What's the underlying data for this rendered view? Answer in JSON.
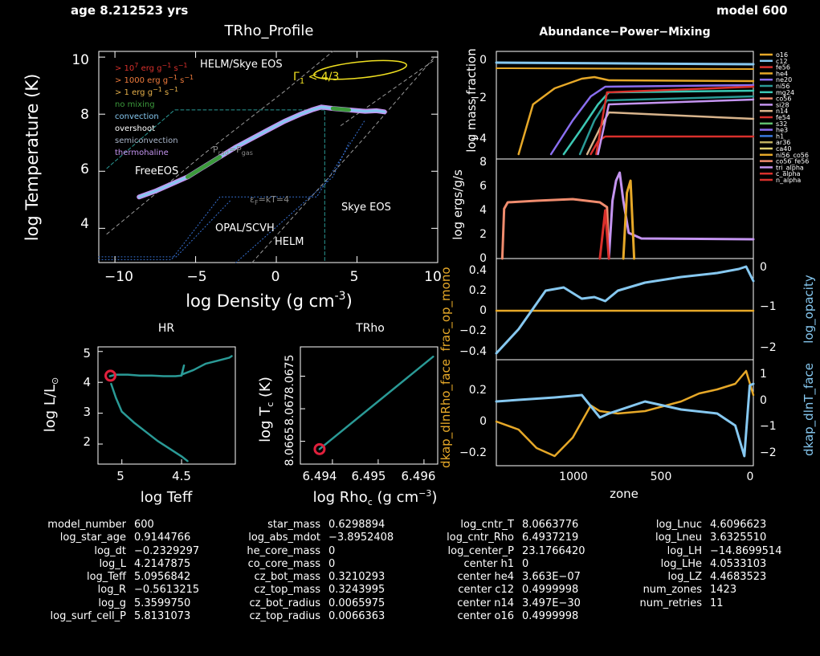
{
  "header": {
    "age_label": "age 8.212523 yrs",
    "model_label": "model 600"
  },
  "trho_profile": {
    "title": "TRho_Profile",
    "xlabel": "log Density (g cm",
    "xlabel_sup": "-3",
    "xlabel_end": ")",
    "ylabel": "log Temperature (K)",
    "xticks": [
      "−10",
      "−5",
      "0",
      "5",
      "10"
    ],
    "yticks": [
      "4",
      "6",
      "8",
      "10"
    ],
    "region_labels": {
      "helm_skye": "HELM/Skye EOS",
      "gamma1": "Γ",
      "gamma1_sub": "1",
      "gamma1_rest": " < 4/3",
      "freeeos": "FreeEOS",
      "prad": "P",
      "prad_sub": "rad",
      "prad_mid": "=P",
      "prad_sub2": "gas",
      "skye": "Skye EOS",
      "opal": "OPAL/SCVH",
      "helm": "HELM",
      "ef": "ε",
      "ef_sub": "F",
      "ef_rest": "=kT=4"
    },
    "legend": [
      {
        "label": "> 10",
        "sup": "7",
        "rest": " erg g",
        "sup2": "−1",
        "rest2": " s",
        "sup3": "−1",
        "color": "#d9302c"
      },
      {
        "label": "> 1000 erg g",
        "sup": "−1",
        "rest": " s",
        "sup2": "−1",
        "rest2": "",
        "sup3": "",
        "color": "#f07c3c"
      },
      {
        "label": "> 1 erg g",
        "sup": "−1",
        "rest": " s",
        "sup2": "−1",
        "rest2": "",
        "sup3": "",
        "color": "#e6b04a"
      },
      {
        "label": "no mixing",
        "sup": "",
        "rest": "",
        "sup2": "",
        "rest2": "",
        "sup3": "",
        "color": "#3c9a3c"
      },
      {
        "label": "convection",
        "sup": "",
        "rest": "",
        "sup2": "",
        "rest2": "",
        "sup3": "",
        "color": "#86c8f0"
      },
      {
        "label": "overshoot",
        "sup": "",
        "rest": "",
        "sup2": "",
        "rest2": "",
        "sup3": "",
        "color": "#ffffff"
      },
      {
        "label": "semiconvection",
        "sup": "",
        "rest": "",
        "sup2": "",
        "rest2": "",
        "sup3": "",
        "color": "#a8b4c8"
      },
      {
        "label": "thermohaline",
        "sup": "",
        "rest": "",
        "sup2": "",
        "rest2": "",
        "sup3": "",
        "color": "#c494f0"
      }
    ]
  },
  "hr": {
    "title": "HR",
    "xlabel": "log Teff",
    "ylabel": "log L/L",
    "xticks": [
      "5",
      "4.5"
    ],
    "yticks": [
      "2",
      "3",
      "4",
      "5"
    ]
  },
  "trho_center": {
    "title": "TRho",
    "xlabel": "log Rho",
    "xlabel_sub": "c",
    "xlabel_rest": " (g cm",
    "xlabel_sup": "−3",
    "xlabel_end": ")",
    "ylabel": "log T",
    "ylabel_sub": "c",
    "ylabel_rest": " (K)",
    "xticks": [
      "6.494",
      "6.495",
      "6.496"
    ],
    "yticks": [
      "8.0665",
      "8.067",
      "8.0675"
    ]
  },
  "abundance": {
    "title": "Abundance−Power−Mixing",
    "ylabel_abund": "log mass fraction",
    "ylabel_power": "log ergs/g/s",
    "ylabel_opmono": "frac_op_mono",
    "ylabel_opacity": "log_opacity",
    "ylabel_dlnrho": "dkap_dlnRho_face",
    "ylabel_dlnt": "dkap_dlnT_face",
    "xlabel": "zone",
    "xticks": [
      "1000",
      "500",
      "0"
    ],
    "abund_yticks": [
      "−4",
      "−2",
      "0"
    ],
    "power_yticks": [
      "0",
      "2",
      "4",
      "6",
      "8"
    ],
    "opmono_yticks": [
      "−0.4",
      "−0.2",
      "0",
      "0.2",
      "0.4"
    ],
    "opacity_yticks": [
      "−2",
      "−1",
      "0"
    ],
    "dlnrho_yticks": [
      "−0.2",
      "0",
      "0.2"
    ],
    "dlnt_yticks": [
      "−2",
      "−1",
      "0",
      "1"
    ],
    "legend": [
      {
        "label": "o16",
        "color": "#e6a828"
      },
      {
        "label": "c12",
        "color": "#86c8f0"
      },
      {
        "label": "fe56",
        "color": "#d9302c"
      },
      {
        "label": "he4",
        "color": "#e6a828"
      },
      {
        "label": "ne20",
        "color": "#8a6ef0"
      },
      {
        "label": "ni56",
        "color": "#2a9a96"
      },
      {
        "label": "mg24",
        "color": "#3cc8b4"
      },
      {
        "label": "co56",
        "color": "#f08c6e"
      },
      {
        "label": "si28",
        "color": "#c494f0"
      },
      {
        "label": "n14",
        "color": "#d8b48c"
      },
      {
        "label": "fe54",
        "color": "#d9302c"
      },
      {
        "label": "s32",
        "color": "#60c070"
      },
      {
        "label": "he3",
        "color": "#8a6ef0"
      },
      {
        "label": "h1",
        "color": "#3a78e0"
      },
      {
        "label": "ar36",
        "color": "#c0b060"
      },
      {
        "label": "ca40",
        "color": "#e0d070"
      },
      {
        "label": "ni56_co56",
        "color": "#e6a828"
      },
      {
        "label": "co56_fe56",
        "color": "#f08c6e"
      },
      {
        "label": "tri_alpha",
        "color": "#c494f0"
      },
      {
        "label": "c_alpha",
        "color": "#d9302c"
      },
      {
        "label": "n_alpha",
        "color": "#d9302c"
      }
    ]
  },
  "table": {
    "col1": [
      [
        "model_number",
        "600"
      ],
      [
        "log_star_age",
        "0.9144766"
      ],
      [
        "log_dt",
        "−0.2329297"
      ],
      [
        "log_L",
        "4.2147875"
      ],
      [
        "log_Teff",
        "5.0956842"
      ],
      [
        "log_R",
        "−0.5613215"
      ],
      [
        "log_g",
        "5.3599750"
      ],
      [
        "log_surf_cell_P",
        "5.8131073"
      ]
    ],
    "col2": [
      [
        "star_mass",
        "0.6298894"
      ],
      [
        "log_abs_mdot",
        "−3.8952408"
      ],
      [
        "he_core_mass",
        "0"
      ],
      [
        "co_core_mass",
        "0"
      ],
      [
        "cz_bot_mass",
        "0.3210293"
      ],
      [
        "cz_top_mass",
        "0.3243995"
      ],
      [
        "cz_bot_radius",
        "0.0065975"
      ],
      [
        "cz_top_radius",
        "0.0066363"
      ]
    ],
    "col3": [
      [
        "log_cntr_T",
        "8.0663776"
      ],
      [
        "log_cntr_Rho",
        "6.4937219"
      ],
      [
        "log_center_P",
        "23.1766420"
      ],
      [
        "center h1",
        "0"
      ],
      [
        "center he4",
        "3.663E−07"
      ],
      [
        "center c12",
        "0.4999998"
      ],
      [
        "center n14",
        "3.497E−30"
      ],
      [
        "center o16",
        "0.4999998"
      ]
    ],
    "col4": [
      [
        "log_Lnuc",
        "4.6096623"
      ],
      [
        "log_Lneu",
        "3.6325510"
      ],
      [
        "log_LH",
        "−14.8699514"
      ],
      [
        "log_LHe",
        "4.0533103"
      ],
      [
        "log_LZ",
        "4.4683523"
      ],
      [
        "num_zones",
        "1423"
      ],
      [
        "num_retries",
        "11"
      ]
    ]
  },
  "chart_data": [
    {
      "type": "line",
      "title": "TRho_Profile",
      "xlabel": "log Density (g cm^-3)",
      "ylabel": "log Temperature (K)",
      "xlim": [
        -11,
        10
      ],
      "ylim": [
        2.8,
        10.2
      ],
      "series": [
        {
          "x": [
            -8.5,
            -7.5,
            -6.5,
            -5.5,
            -4.5,
            -3.5,
            -2.5,
            -1.5,
            -0.5,
            0.5,
            1.5,
            2.2,
            2.8,
            3.5,
            4.5,
            5.5,
            6.2,
            6.7
          ],
          "y": [
            5.1,
            5.3,
            5.55,
            5.8,
            6.15,
            6.5,
            6.85,
            7.15,
            7.45,
            7.75,
            8.0,
            8.15,
            8.25,
            8.2,
            8.15,
            8.1,
            8.12,
            8.08
          ]
        }
      ]
    },
    {
      "type": "line",
      "title": "HR",
      "xlabel": "log Teff",
      "ylabel": "log L/L_sun",
      "xlim": [
        5.2,
        4.05
      ],
      "ylim": [
        1.35,
        5.15
      ],
      "series": [
        {
          "x": [
            5.09,
            5.05,
            5.0,
            4.9,
            4.8,
            4.7,
            4.6,
            4.5,
            4.45
          ],
          "y": [
            3.95,
            3.5,
            3.05,
            2.7,
            2.4,
            2.1,
            1.85,
            1.6,
            1.45
          ]
        },
        {
          "x": [
            5.1,
            5.05,
            4.95,
            4.85,
            4.75,
            4.65,
            4.55,
            4.5,
            4.48,
            4.5,
            4.4,
            4.3,
            4.2,
            4.1,
            4.08
          ],
          "y": [
            4.2,
            4.25,
            4.25,
            4.22,
            4.22,
            4.2,
            4.2,
            4.22,
            4.55,
            4.25,
            4.4,
            4.6,
            4.7,
            4.8,
            4.85
          ]
        }
      ],
      "current_point": {
        "x": 5.0957,
        "y": 4.2148
      }
    },
    {
      "type": "line",
      "title": "TRho",
      "xlabel": "log Rho_c (g cm^-3)",
      "ylabel": "log T_c (K)",
      "xlim": [
        6.4933,
        6.4963
      ],
      "ylim": [
        8.06615,
        8.06795
      ],
      "series": [
        {
          "x": [
            6.49372,
            6.4962
          ],
          "y": [
            8.06638,
            8.0678
          ]
        }
      ],
      "current_point": {
        "x": 6.49372,
        "y": 8.06638
      }
    }
  ]
}
